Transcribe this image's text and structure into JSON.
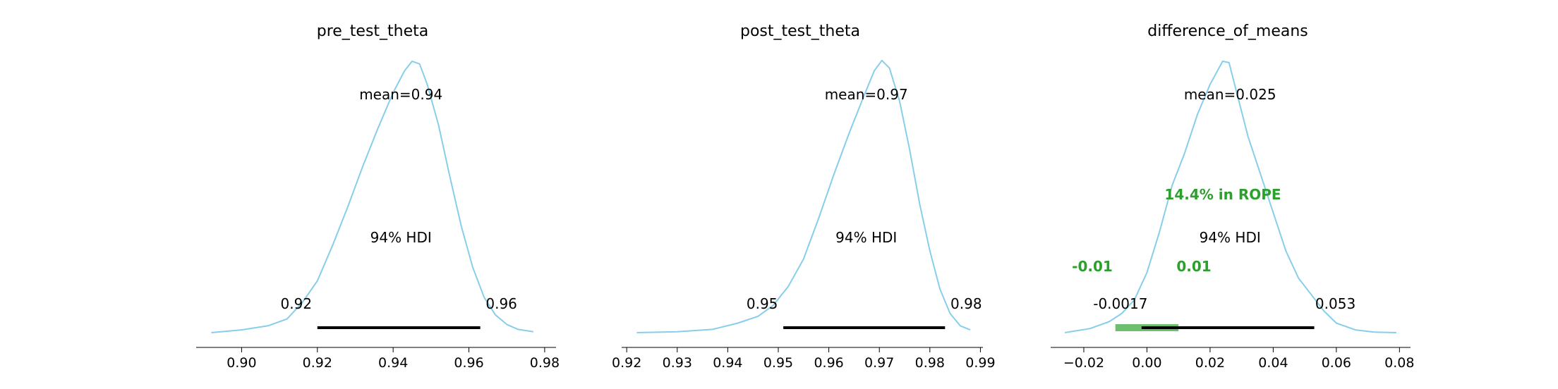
{
  "figure": {
    "background": "#ffffff"
  },
  "colors": {
    "density": "#87ceeb",
    "hdi_bar": "#000000",
    "rope": "#2ca02c",
    "rope_band": "#6dbf6d"
  },
  "panels": [
    {
      "title": "pre_test_theta",
      "mean_label": "mean=0.94",
      "hdi_label": "94% HDI",
      "hdi": [
        0.92,
        0.963
      ],
      "hdi_low_label": "0.92",
      "hdi_high_label": "0.96",
      "xlim": [
        0.888,
        0.983
      ],
      "ticks": [
        0.9,
        0.92,
        0.94,
        0.96,
        0.98
      ],
      "tick_labels": [
        "0.90",
        "0.92",
        "0.94",
        "0.96",
        "0.98"
      ],
      "density": [
        [
          0.892,
          0.0
        ],
        [
          0.9,
          0.01
        ],
        [
          0.907,
          0.025
        ],
        [
          0.912,
          0.05
        ],
        [
          0.916,
          0.11
        ],
        [
          0.92,
          0.19
        ],
        [
          0.924,
          0.32
        ],
        [
          0.928,
          0.46
        ],
        [
          0.932,
          0.61
        ],
        [
          0.936,
          0.75
        ],
        [
          0.94,
          0.88
        ],
        [
          0.943,
          0.96
        ],
        [
          0.945,
          0.995
        ],
        [
          0.947,
          0.985
        ],
        [
          0.949,
          0.91
        ],
        [
          0.952,
          0.76
        ],
        [
          0.955,
          0.57
        ],
        [
          0.958,
          0.39
        ],
        [
          0.961,
          0.24
        ],
        [
          0.964,
          0.13
        ],
        [
          0.967,
          0.065
        ],
        [
          0.97,
          0.03
        ],
        [
          0.973,
          0.012
        ],
        [
          0.977,
          0.003
        ]
      ]
    },
    {
      "title": "post_test_theta",
      "mean_label": "mean=0.97",
      "hdi_label": "94% HDI",
      "hdi": [
        0.951,
        0.983
      ],
      "hdi_low_label": "0.95",
      "hdi_high_label": "0.98",
      "xlim": [
        0.919,
        0.9905
      ],
      "ticks": [
        0.92,
        0.93,
        0.94,
        0.95,
        0.96,
        0.97,
        0.98,
        0.99
      ],
      "tick_labels": [
        "0.92",
        "0.93",
        "0.94",
        "0.95",
        "0.96",
        "0.97",
        "0.98",
        "0.99"
      ],
      "density": [
        [
          0.922,
          0.0
        ],
        [
          0.93,
          0.003
        ],
        [
          0.937,
          0.012
        ],
        [
          0.942,
          0.035
        ],
        [
          0.946,
          0.06
        ],
        [
          0.949,
          0.1
        ],
        [
          0.952,
          0.17
        ],
        [
          0.955,
          0.27
        ],
        [
          0.958,
          0.42
        ],
        [
          0.961,
          0.58
        ],
        [
          0.964,
          0.73
        ],
        [
          0.967,
          0.87
        ],
        [
          0.969,
          0.96
        ],
        [
          0.9705,
          0.998
        ],
        [
          0.972,
          0.97
        ],
        [
          0.974,
          0.85
        ],
        [
          0.976,
          0.67
        ],
        [
          0.978,
          0.47
        ],
        [
          0.98,
          0.3
        ],
        [
          0.982,
          0.16
        ],
        [
          0.984,
          0.07
        ],
        [
          0.986,
          0.025
        ],
        [
          0.988,
          0.01
        ]
      ]
    },
    {
      "title": "difference_of_means",
      "mean_label": "mean=0.025",
      "hdi_label": "94% HDI",
      "hdi": [
        -0.0017,
        0.053
      ],
      "hdi_low_label": "-0.0017",
      "hdi_high_label": "0.053",
      "rope": [
        -0.01,
        0.01
      ],
      "rope_low_label": "-0.01",
      "rope_high_label": "0.01",
      "rope_label": "14.4% in ROPE",
      "xlim": [
        -0.0305,
        0.0835
      ],
      "ticks": [
        -0.02,
        0.0,
        0.02,
        0.04,
        0.06,
        0.08
      ],
      "tick_labels": [
        "−0.02",
        "0.00",
        "0.02",
        "0.04",
        "0.06",
        "0.08"
      ],
      "density": [
        [
          -0.026,
          0.0
        ],
        [
          -0.018,
          0.015
        ],
        [
          -0.012,
          0.04
        ],
        [
          -0.008,
          0.07
        ],
        [
          -0.004,
          0.12
        ],
        [
          0.0,
          0.22
        ],
        [
          0.004,
          0.37
        ],
        [
          0.008,
          0.54
        ],
        [
          0.012,
          0.66
        ],
        [
          0.016,
          0.8
        ],
        [
          0.02,
          0.91
        ],
        [
          0.024,
          0.995
        ],
        [
          0.026,
          0.99
        ],
        [
          0.028,
          0.9
        ],
        [
          0.032,
          0.72
        ],
        [
          0.036,
          0.58
        ],
        [
          0.04,
          0.44
        ],
        [
          0.044,
          0.3
        ],
        [
          0.048,
          0.2
        ],
        [
          0.052,
          0.14
        ],
        [
          0.056,
          0.08
        ],
        [
          0.06,
          0.035
        ],
        [
          0.066,
          0.01
        ],
        [
          0.072,
          0.002
        ],
        [
          0.079,
          0.0
        ]
      ]
    }
  ]
}
